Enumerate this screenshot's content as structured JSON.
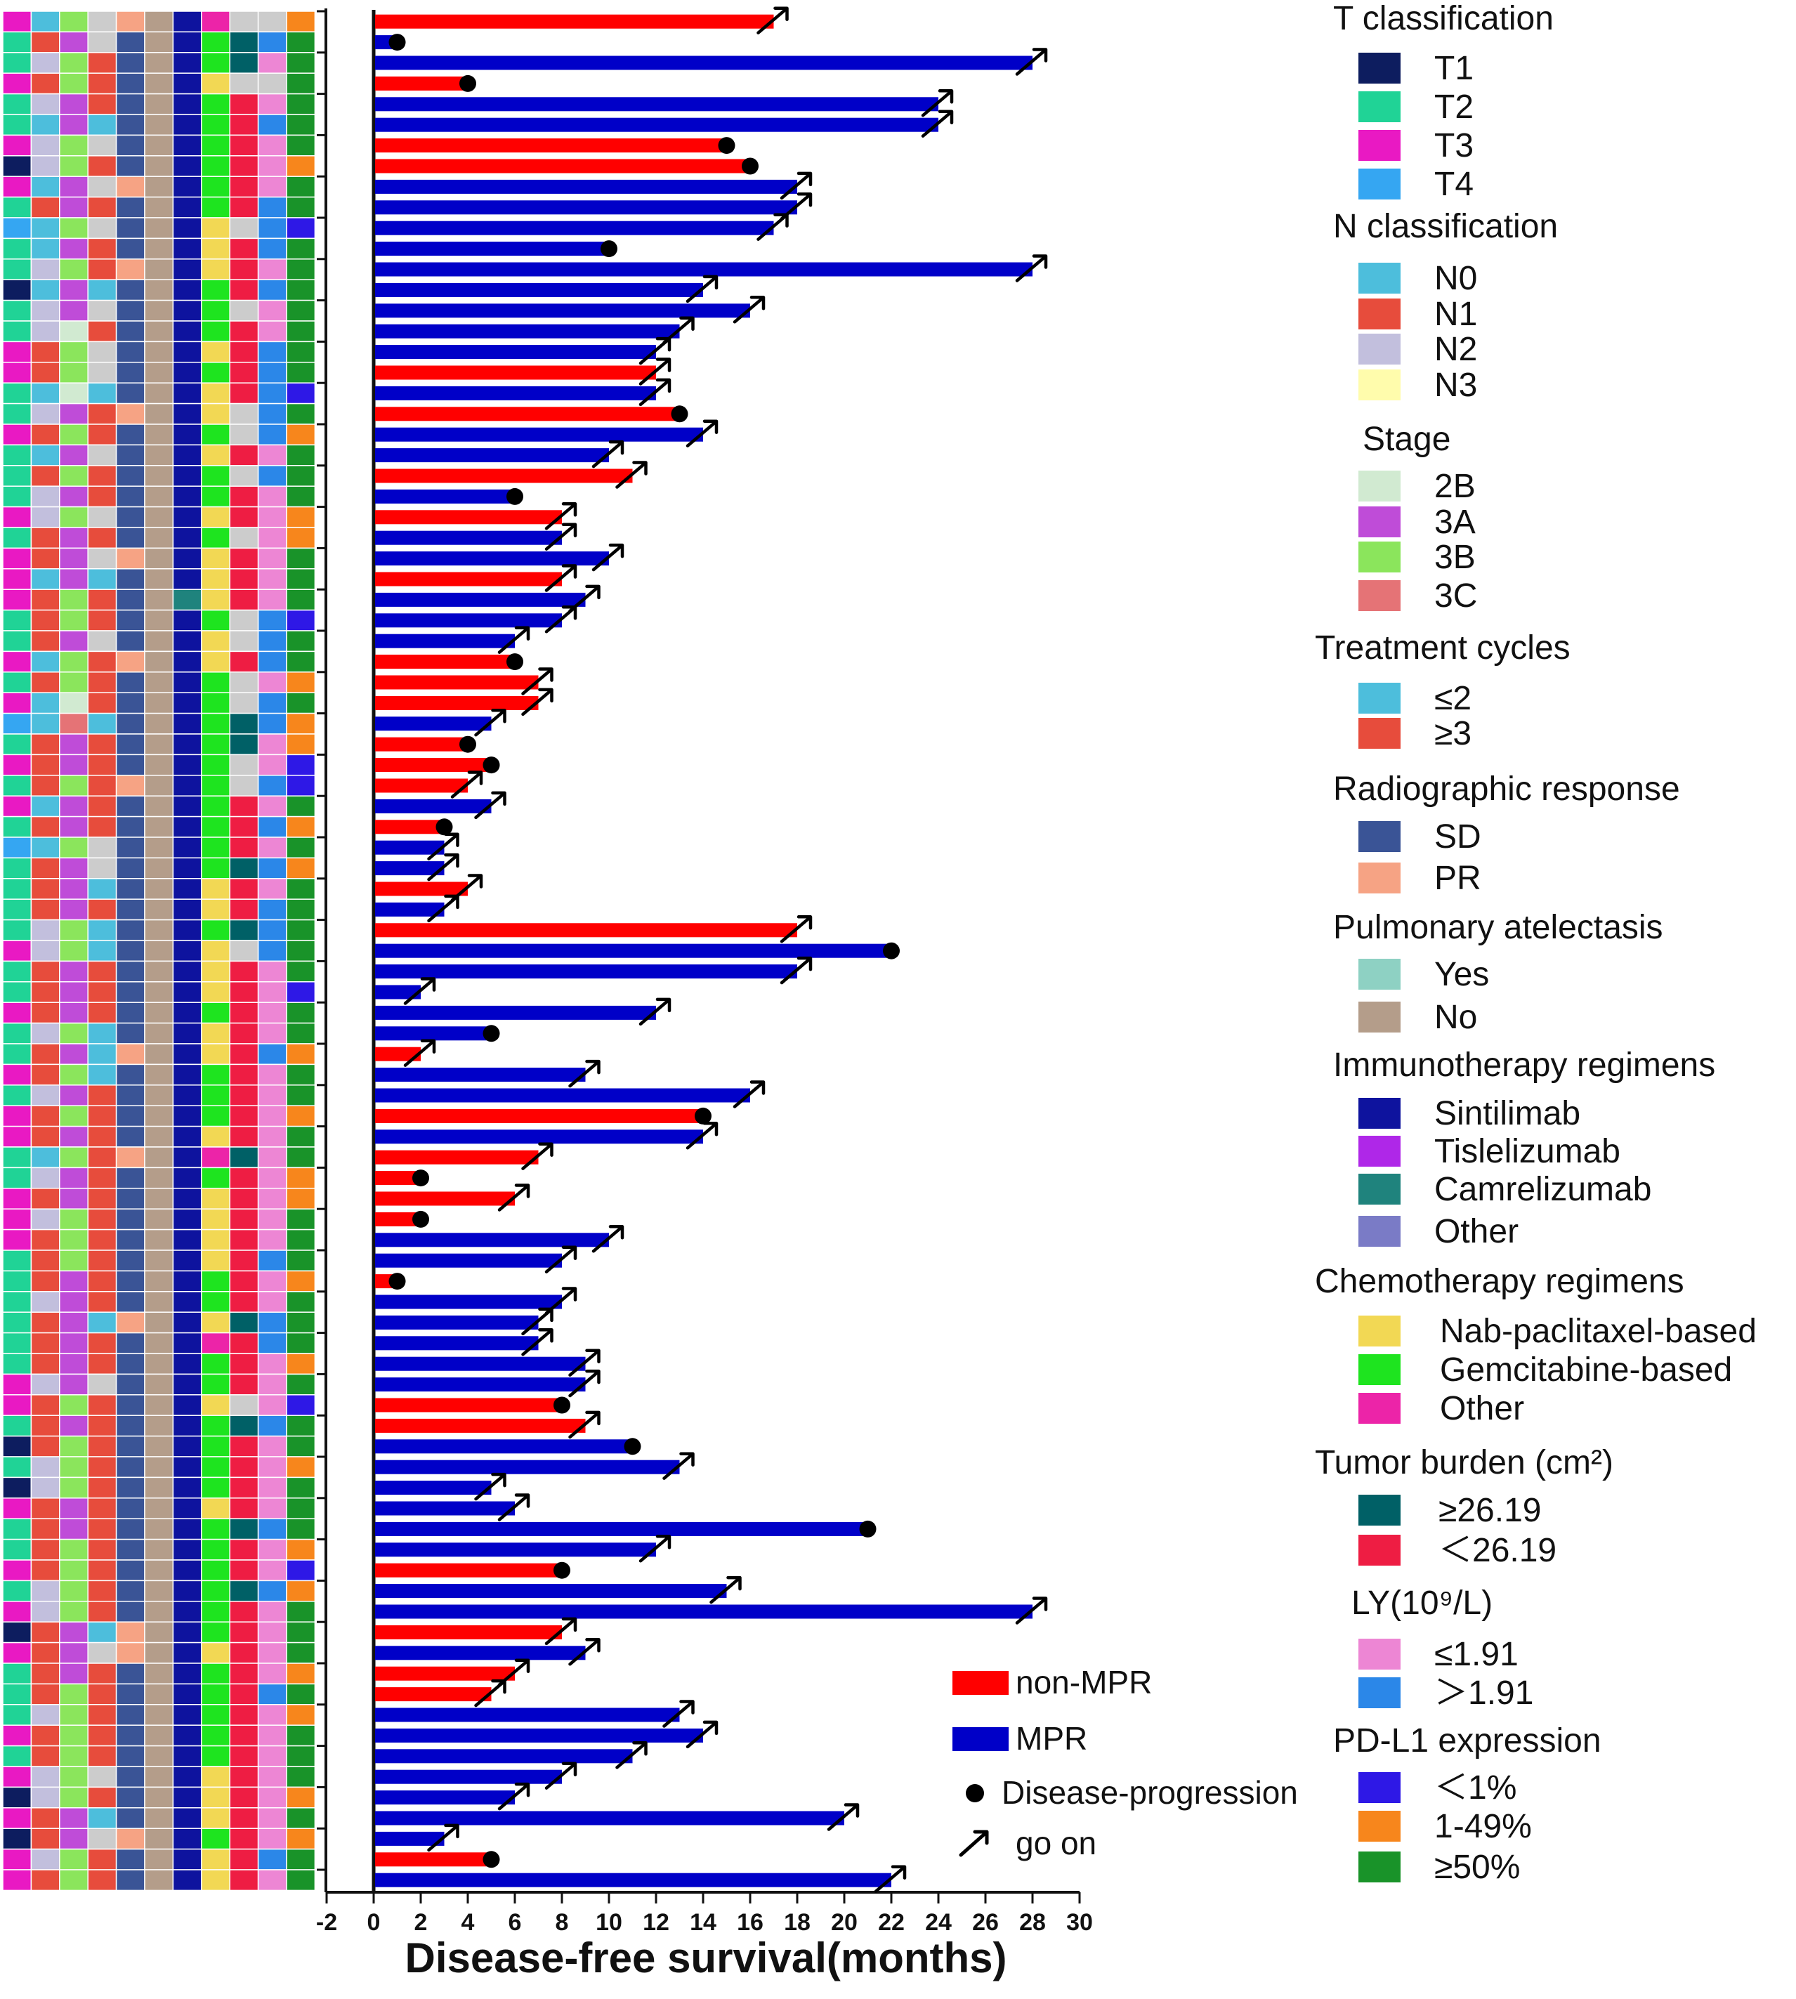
{
  "chart_data": {
    "type": "bar",
    "orientation": "horizontal",
    "title": "",
    "xlabel": "Disease-free survival(months)",
    "ylabel": "",
    "xlim": [
      -2,
      30
    ],
    "x_ticks": [
      "-2",
      "0",
      "2",
      "4",
      "6",
      "8",
      "10",
      "12",
      "14",
      "16",
      "18",
      "20",
      "22",
      "24",
      "26",
      "28",
      "30"
    ],
    "grid": false,
    "series_colors": {
      "non-MPR": "#ff0000",
      "MPR": "#0000c8"
    },
    "patients": [
      {
        "group": "non-MPR",
        "dfs": 17,
        "end": "arrow"
      },
      {
        "group": "MPR",
        "dfs": 1,
        "end": "dot"
      },
      {
        "group": "MPR",
        "dfs": 28,
        "end": "arrow"
      },
      {
        "group": "non-MPR",
        "dfs": 4,
        "end": "dot"
      },
      {
        "group": "MPR",
        "dfs": 24,
        "end": "arrow"
      },
      {
        "group": "MPR",
        "dfs": 24,
        "end": "arrow"
      },
      {
        "group": "non-MPR",
        "dfs": 15,
        "end": "dot"
      },
      {
        "group": "non-MPR",
        "dfs": 16,
        "end": "dot"
      },
      {
        "group": "MPR",
        "dfs": 18,
        "end": "arrow"
      },
      {
        "group": "MPR",
        "dfs": 18,
        "end": "arrow"
      },
      {
        "group": "MPR",
        "dfs": 17,
        "end": "arrow"
      },
      {
        "group": "MPR",
        "dfs": 10,
        "end": "dot"
      },
      {
        "group": "MPR",
        "dfs": 28,
        "end": "arrow"
      },
      {
        "group": "MPR",
        "dfs": 14,
        "end": "arrow"
      },
      {
        "group": "MPR",
        "dfs": 16,
        "end": "arrow"
      },
      {
        "group": "MPR",
        "dfs": 13,
        "end": "arrow"
      },
      {
        "group": "MPR",
        "dfs": 12,
        "end": "arrow"
      },
      {
        "group": "non-MPR",
        "dfs": 12,
        "end": "arrow"
      },
      {
        "group": "MPR",
        "dfs": 12,
        "end": "arrow"
      },
      {
        "group": "non-MPR",
        "dfs": 13,
        "end": "dot"
      },
      {
        "group": "MPR",
        "dfs": 14,
        "end": "arrow"
      },
      {
        "group": "MPR",
        "dfs": 10,
        "end": "arrow"
      },
      {
        "group": "non-MPR",
        "dfs": 11,
        "end": "arrow"
      },
      {
        "group": "MPR",
        "dfs": 6,
        "end": "dot"
      },
      {
        "group": "non-MPR",
        "dfs": 8,
        "end": "arrow"
      },
      {
        "group": "MPR",
        "dfs": 8,
        "end": "arrow"
      },
      {
        "group": "MPR",
        "dfs": 10,
        "end": "arrow"
      },
      {
        "group": "non-MPR",
        "dfs": 8,
        "end": "arrow"
      },
      {
        "group": "MPR",
        "dfs": 9,
        "end": "arrow"
      },
      {
        "group": "MPR",
        "dfs": 8,
        "end": "arrow"
      },
      {
        "group": "MPR",
        "dfs": 6,
        "end": "arrow"
      },
      {
        "group": "non-MPR",
        "dfs": 6,
        "end": "dot"
      },
      {
        "group": "non-MPR",
        "dfs": 7,
        "end": "arrow"
      },
      {
        "group": "non-MPR",
        "dfs": 7,
        "end": "arrow"
      },
      {
        "group": "MPR",
        "dfs": 5,
        "end": "arrow"
      },
      {
        "group": "non-MPR",
        "dfs": 4,
        "end": "dot"
      },
      {
        "group": "non-MPR",
        "dfs": 5,
        "end": "dot"
      },
      {
        "group": "non-MPR",
        "dfs": 4,
        "end": "arrow"
      },
      {
        "group": "MPR",
        "dfs": 5,
        "end": "arrow"
      },
      {
        "group": "non-MPR",
        "dfs": 3,
        "end": "dot"
      },
      {
        "group": "MPR",
        "dfs": 3,
        "end": "arrow"
      },
      {
        "group": "MPR",
        "dfs": 3,
        "end": "arrow"
      },
      {
        "group": "non-MPR",
        "dfs": 4,
        "end": "arrow"
      },
      {
        "group": "MPR",
        "dfs": 3,
        "end": "arrow"
      },
      {
        "group": "non-MPR",
        "dfs": 18,
        "end": "arrow"
      },
      {
        "group": "MPR",
        "dfs": 22,
        "end": "dot"
      },
      {
        "group": "MPR",
        "dfs": 18,
        "end": "arrow"
      },
      {
        "group": "MPR",
        "dfs": 2,
        "end": "arrow"
      },
      {
        "group": "MPR",
        "dfs": 12,
        "end": "arrow"
      },
      {
        "group": "MPR",
        "dfs": 5,
        "end": "dot"
      },
      {
        "group": "non-MPR",
        "dfs": 2,
        "end": "arrow"
      },
      {
        "group": "MPR",
        "dfs": 9,
        "end": "arrow"
      },
      {
        "group": "MPR",
        "dfs": 16,
        "end": "arrow"
      },
      {
        "group": "non-MPR",
        "dfs": 14,
        "end": "dot"
      },
      {
        "group": "MPR",
        "dfs": 14,
        "end": "arrow"
      },
      {
        "group": "non-MPR",
        "dfs": 7,
        "end": "arrow"
      },
      {
        "group": "non-MPR",
        "dfs": 2,
        "end": "dot"
      },
      {
        "group": "non-MPR",
        "dfs": 6,
        "end": "arrow"
      },
      {
        "group": "non-MPR",
        "dfs": 2,
        "end": "dot"
      },
      {
        "group": "MPR",
        "dfs": 10,
        "end": "arrow"
      },
      {
        "group": "MPR",
        "dfs": 8,
        "end": "arrow"
      },
      {
        "group": "non-MPR",
        "dfs": 1,
        "end": "dot"
      },
      {
        "group": "MPR",
        "dfs": 8,
        "end": "arrow"
      },
      {
        "group": "MPR",
        "dfs": 7,
        "end": "arrow"
      },
      {
        "group": "MPR",
        "dfs": 7,
        "end": "arrow"
      },
      {
        "group": "MPR",
        "dfs": 9,
        "end": "arrow"
      },
      {
        "group": "MPR",
        "dfs": 9,
        "end": "arrow"
      },
      {
        "group": "non-MPR",
        "dfs": 8,
        "end": "dot"
      },
      {
        "group": "non-MPR",
        "dfs": 9,
        "end": "arrow"
      },
      {
        "group": "MPR",
        "dfs": 11,
        "end": "dot"
      },
      {
        "group": "MPR",
        "dfs": 13,
        "end": "arrow"
      },
      {
        "group": "MPR",
        "dfs": 5,
        "end": "arrow"
      },
      {
        "group": "MPR",
        "dfs": 6,
        "end": "arrow"
      },
      {
        "group": "MPR",
        "dfs": 21,
        "end": "dot"
      },
      {
        "group": "MPR",
        "dfs": 12,
        "end": "arrow"
      },
      {
        "group": "non-MPR",
        "dfs": 8,
        "end": "dot"
      },
      {
        "group": "MPR",
        "dfs": 15,
        "end": "arrow"
      },
      {
        "group": "MPR",
        "dfs": 28,
        "end": "arrow"
      },
      {
        "group": "non-MPR",
        "dfs": 8,
        "end": "arrow"
      },
      {
        "group": "MPR",
        "dfs": 9,
        "end": "arrow"
      },
      {
        "group": "non-MPR",
        "dfs": 6,
        "end": "arrow"
      },
      {
        "group": "non-MPR",
        "dfs": 5,
        "end": "arrow"
      },
      {
        "group": "MPR",
        "dfs": 13,
        "end": "arrow"
      },
      {
        "group": "MPR",
        "dfs": 14,
        "end": "arrow"
      },
      {
        "group": "MPR",
        "dfs": 11,
        "end": "arrow"
      },
      {
        "group": "MPR",
        "dfs": 8,
        "end": "arrow"
      },
      {
        "group": "MPR",
        "dfs": 6,
        "end": "arrow"
      },
      {
        "group": "MPR",
        "dfs": 20,
        "end": "arrow"
      },
      {
        "group": "MPR",
        "dfs": 3,
        "end": "arrow"
      },
      {
        "group": "non-MPR",
        "dfs": 5,
        "end": "dot"
      },
      {
        "group": "MPR",
        "dfs": 22,
        "end": "arrow"
      }
    ],
    "plot_legend": [
      {
        "label": "non-MPR",
        "symbol": "bar",
        "color": "#ff0000"
      },
      {
        "label": "MPR",
        "symbol": "bar",
        "color": "#0000c8"
      },
      {
        "label": "Disease-progression",
        "symbol": "dot",
        "color": "#000000"
      },
      {
        "label": "go on",
        "symbol": "arrow",
        "color": "#000000"
      }
    ],
    "heatmap": {
      "description_columns": [
        "T classification",
        "N classification",
        "Stage",
        "Treatment cycles",
        "Radiographic response",
        "Pulmonary atelectasis",
        "Immunotherapy regimens",
        "Chemotherapy regimens",
        "Tumor burden (cm²)",
        "LY(10⁹/L)",
        "PD-L1 expression"
      ],
      "cell_codes": [
        "3133221330B",
        "2223121212C",
        "2332121211C",
        "3232121130C",
        "2322121221C",
        "2121121222C",
        "3333121221C",
        "1332121221B",
        "3123221221C",
        "2222121222C",
        "4133121132A",
        "2122121122C",
        "2332221121C",
        "1121121222C",
        "2323121231C",
        "2312121221C",
        "3233121122C",
        "3233121222C",
        "2111121122A",
        "2322221132C",
        "3232121242B",
        "2123121121C",
        "2232121232C",
        "2322121221C",
        "3333121121B",
        "2222121231B",
        "3223221121C",
        "3121121121C",
        "3232123121C",
        "2232121232A",
        "2223121132C",
        "3132221122C",
        "2232121231B",
        "3112121232C",
        "4141121212B",
        "2222121211B",
        "3222121231A",
        "2232221232A",
        "3122121221C",
        "2222121222B",
        "4133121221C",
        "2223121212B",
        "2221121121C",
        "2222121122C",
        "2331121212C",
        "3331121132C",
        "2222121121C",
        "2222121121A",
        "3222121221C",
        "2331121121C",
        "2221221122B",
        "3231121221C",
        "2322121221C",
        "3232121221B",
        "3222121121C",
        "2132221311C",
        "2322121221B",
        "3222121121B",
        "3332121121C",
        "3232121121C",
        "2232121122C",
        "2222121221B",
        "2322121221C",
        "2221221112C",
        "2222121322C",
        "2222121221B",
        "3323121221C",
        "3232121131A",
        "2222121212C",
        "1232121221C",
        "2332121221B",
        "1332121221C",
        "3222121121C",
        "2222121212C",
        "2232121221B",
        "3232121221A",
        "2332121212B",
        "3332121221C",
        "1221221221C",
        "3223221121C",
        "2222121221B",
        "2232121222C",
        "2332121221B",
        "3232121221C",
        "2232121221C",
        "3333121121C",
        "1332121121B",
        "3221121121C",
        "1223221221B",
        "3332121122C",
        "3232121121C"
      ],
      "palettes": [
        {
          "1": "#0d1d5f",
          "2": "#20d396",
          "3": "#e919c3",
          "4": "#35a6f2"
        },
        {
          "1": "#4dbedc",
          "2": "#e74c3c",
          "3": "#c2bfdd",
          "4": "#fffcac"
        },
        {
          "1": "#d1ead1",
          "2": "#bf4cd8",
          "3": "#8be55c",
          "4": "#e57376"
        },
        {
          "1": "#4dbedc",
          "2": "#e74c3c"
        },
        {
          "1": "#3a5496",
          "2": "#f6a384"
        },
        {
          "1": "#8ed1c3",
          "2": "#b49d8a"
        },
        {
          "1": "#0e139e",
          "2": "#af27e8",
          "3": "#1f837d",
          "4": "#7a7bc6"
        },
        {
          "1": "#f2d854",
          "2": "#1ee41f",
          "3": "#ec24a8"
        },
        {
          "1": "#006066",
          "2": "#ee1d43"
        },
        {
          "1": "#ed86d4",
          "2": "#2b87e8"
        },
        {
          "A": "#2e18e6",
          "B": "#f7861c",
          "C": "#199329"
        }
      ]
    },
    "legend_groups": [
      {
        "title": "T classification",
        "items": [
          {
            "label": "T1",
            "color": "#0d1d5f"
          },
          {
            "label": "T2",
            "color": "#20d396"
          },
          {
            "label": "T3",
            "color": "#e919c3"
          },
          {
            "label": "T4",
            "color": "#35a6f2"
          }
        ]
      },
      {
        "title": "N classification",
        "items": [
          {
            "label": "N0",
            "color": "#4dbedc"
          },
          {
            "label": "N1",
            "color": "#e74c3c"
          },
          {
            "label": "N2",
            "color": "#c2bfdd"
          },
          {
            "label": "N3",
            "color": "#fffcac"
          }
        ]
      },
      {
        "title": "Stage",
        "items": [
          {
            "label": "2B",
            "color": "#d1ead1"
          },
          {
            "label": "3A",
            "color": "#bf4cd8"
          },
          {
            "label": "3B",
            "color": "#8be55c"
          },
          {
            "label": "3C",
            "color": "#e57376"
          }
        ]
      },
      {
        "title": "Treatment cycles",
        "items": [
          {
            "label": "≤2",
            "color": "#4dbedc"
          },
          {
            "label": "≥3",
            "color": "#e74c3c"
          }
        ]
      },
      {
        "title": "Radiographic response",
        "items": [
          {
            "label": "SD",
            "color": "#3a5496"
          },
          {
            "label": "PR",
            "color": "#f6a384"
          }
        ]
      },
      {
        "title": "Pulmonary atelectasis",
        "items": [
          {
            "label": "Yes",
            "color": "#8ed1c3"
          },
          {
            "label": "No",
            "color": "#b49d8a"
          }
        ]
      },
      {
        "title": "Immunotherapy regimens",
        "items": [
          {
            "label": "Sintilimab",
            "color": "#0e139e"
          },
          {
            "label": "Tislelizumab",
            "color": "#af27e8"
          },
          {
            "label": "Camrelizumab",
            "color": "#1f837d"
          },
          {
            "label": "Other",
            "color": "#7a7bc6"
          }
        ]
      },
      {
        "title": "Chemotherapy regimens",
        "items": [
          {
            "label": "Nab-paclitaxel-based",
            "color": "#f2d854"
          },
          {
            "label": "Gemcitabine-based",
            "color": "#1ee41f"
          },
          {
            "label": "Other",
            "color": "#ec24a8"
          }
        ]
      },
      {
        "title": "Tumor burden (cm²)",
        "items": [
          {
            "label": "≥26.19",
            "color": "#006066"
          },
          {
            "label": "＜26.19",
            "color": "#ee1d43"
          }
        ]
      },
      {
        "title": "LY(10⁹/L)",
        "items": [
          {
            "label": "≤1.91",
            "color": "#ed86d4"
          },
          {
            "label": "＞1.91",
            "color": "#2b87e8"
          }
        ]
      },
      {
        "title": "PD-L1 expression",
        "items": [
          {
            "label": "＜1%",
            "color": "#2e18e6"
          },
          {
            "label": "1-49%",
            "color": "#f7861c"
          },
          {
            "label": "≥50%",
            "color": "#199329"
          }
        ]
      }
    ]
  }
}
